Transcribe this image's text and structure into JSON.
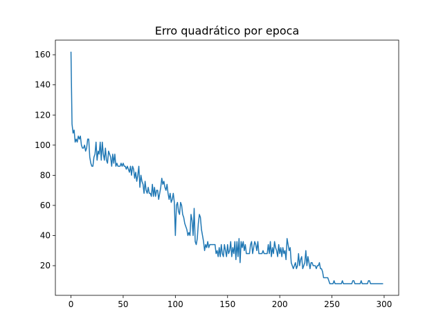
{
  "chart_data": {
    "type": "line",
    "title": "Erro quadrático por epoca",
    "x": [
      0,
      1,
      2,
      3,
      4,
      5,
      6,
      7,
      8,
      9,
      10,
      11,
      12,
      13,
      14,
      15,
      16,
      17,
      18,
      19,
      20,
      21,
      22,
      23,
      24,
      25,
      26,
      27,
      28,
      29,
      30,
      31,
      32,
      33,
      34,
      35,
      36,
      37,
      38,
      39,
      40,
      41,
      42,
      43,
      44,
      45,
      46,
      47,
      48,
      49,
      50,
      51,
      52,
      53,
      54,
      55,
      56,
      57,
      58,
      59,
      60,
      61,
      62,
      63,
      64,
      65,
      66,
      67,
      68,
      69,
      70,
      71,
      72,
      73,
      74,
      75,
      76,
      77,
      78,
      79,
      80,
      81,
      82,
      83,
      84,
      85,
      86,
      87,
      88,
      89,
      90,
      91,
      92,
      93,
      94,
      95,
      96,
      97,
      98,
      99,
      100,
      101,
      102,
      103,
      104,
      105,
      106,
      107,
      108,
      109,
      110,
      111,
      112,
      113,
      114,
      115,
      116,
      117,
      118,
      119,
      120,
      121,
      122,
      123,
      124,
      125,
      126,
      127,
      128,
      129,
      130,
      131,
      132,
      133,
      134,
      135,
      136,
      137,
      138,
      139,
      140,
      141,
      142,
      143,
      144,
      145,
      146,
      147,
      148,
      149,
      150,
      151,
      152,
      153,
      154,
      155,
      156,
      157,
      158,
      159,
      160,
      161,
      162,
      163,
      164,
      165,
      166,
      167,
      168,
      169,
      170,
      171,
      172,
      173,
      174,
      175,
      176,
      177,
      178,
      179,
      180,
      181,
      182,
      183,
      184,
      185,
      186,
      187,
      188,
      189,
      190,
      191,
      192,
      193,
      194,
      195,
      196,
      197,
      198,
      199,
      200,
      201,
      202,
      203,
      204,
      205,
      206,
      207,
      208,
      209,
      210,
      211,
      212,
      213,
      214,
      215,
      216,
      217,
      218,
      219,
      220,
      221,
      222,
      223,
      224,
      225,
      226,
      227,
      228,
      229,
      230,
      231,
      232,
      233,
      234,
      235,
      236,
      237,
      238,
      239,
      240,
      241,
      242,
      243,
      244,
      245,
      246,
      247,
      248,
      249,
      250,
      251,
      252,
      253,
      254,
      255,
      256,
      257,
      258,
      259,
      260,
      261,
      262,
      263,
      264,
      265,
      266,
      267,
      268,
      269,
      270,
      271,
      272,
      273,
      274,
      275,
      276,
      277,
      278,
      279,
      280,
      281,
      282,
      283,
      284,
      285,
      286,
      287,
      288,
      289,
      290,
      291,
      292,
      293,
      294,
      295,
      296,
      297,
      298,
      299
    ],
    "series": [
      {
        "color": "#1f77b4",
        "values": [
          162,
          114,
          108,
          110,
          102,
          104,
          102,
          106,
          104,
          106,
          100,
          98,
          98,
          100,
          96,
          98,
          104,
          104,
          92,
          88,
          86,
          86,
          92,
          94,
          102,
          90,
          96,
          94,
          102,
          90,
          102,
          94,
          90,
          98,
          90,
          88,
          96,
          94,
          92,
          86,
          94,
          88,
          94,
          86,
          88,
          86,
          86,
          86,
          88,
          86,
          88,
          86,
          86,
          84,
          86,
          84,
          82,
          86,
          80,
          86,
          84,
          78,
          82,
          76,
          80,
          86,
          72,
          80,
          76,
          74,
          68,
          76,
          70,
          68,
          72,
          68,
          68,
          66,
          74,
          66,
          72,
          66,
          70,
          70,
          64,
          68,
          72,
          78,
          74,
          76,
          72,
          70,
          74,
          68,
          64,
          68,
          62,
          64,
          68,
          62,
          40,
          60,
          62,
          56,
          54,
          62,
          60,
          54,
          52,
          48,
          46,
          44,
          40,
          42,
          40,
          54,
          50,
          40,
          58,
          36,
          34,
          38,
          48,
          54,
          52,
          44,
          40,
          36,
          30,
          34,
          32,
          36,
          32,
          34,
          34,
          34,
          34,
          34,
          34,
          28,
          30,
          26,
          32,
          26,
          34,
          28,
          26,
          34,
          30,
          26,
          34,
          28,
          30,
          36,
          26,
          32,
          28,
          36,
          24,
          36,
          26,
          38,
          22,
          36,
          32,
          36,
          30,
          34,
          28,
          28,
          28,
          28,
          34,
          36,
          28,
          32,
          36,
          34,
          30,
          36,
          28,
          28,
          28,
          28,
          30,
          28,
          28,
          28,
          28,
          34,
          28,
          36,
          26,
          32,
          28,
          36,
          32,
          30,
          26,
          34,
          28,
          32,
          26,
          32,
          28,
          30,
          24,
          38,
          34,
          30,
          32,
          22,
          20,
          18,
          20,
          22,
          18,
          20,
          28,
          20,
          24,
          26,
          18,
          20,
          22,
          30,
          20,
          26,
          22,
          18,
          22,
          22,
          20,
          20,
          20,
          18,
          20,
          20,
          22,
          18,
          18,
          16,
          12,
          12,
          12,
          12,
          12,
          10,
          8,
          8,
          8,
          8,
          10,
          8,
          8,
          8,
          8,
          8,
          8,
          8,
          10,
          8,
          8,
          8,
          8,
          8,
          8,
          8,
          8,
          8,
          10,
          10,
          8,
          8,
          8,
          8,
          8,
          8,
          10,
          8,
          8,
          8,
          8,
          8,
          8,
          10,
          10,
          8,
          8,
          8,
          8,
          8,
          8,
          8,
          8,
          8,
          8,
          8,
          8,
          8
        ]
      }
    ],
    "xlim": [
      -14.95,
      313.95
    ],
    "ylim": [
      0.3,
      169.7
    ],
    "xticks": [
      0,
      50,
      100,
      150,
      200,
      250,
      300
    ],
    "yticks": [
      20,
      40,
      60,
      80,
      100,
      120,
      140,
      160
    ]
  }
}
